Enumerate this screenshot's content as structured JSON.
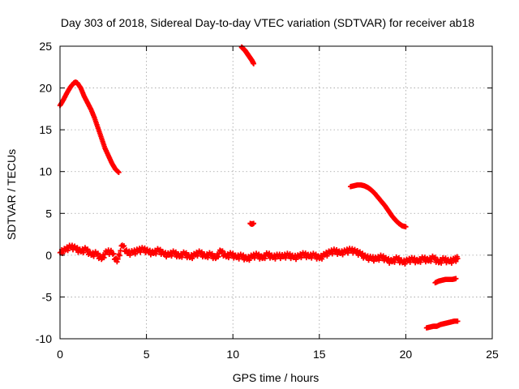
{
  "chart_data": {
    "type": "scatter",
    "title": "Day 303 of 2018, Sidereal Day-to-day VTEC variation (SDTVAR) for receiver ab18",
    "xlabel": "GPS time / hours",
    "ylabel": "SDTVAR / TECUs",
    "xlim": [
      0,
      25
    ],
    "ylim": [
      -10,
      25
    ],
    "xticks": [
      0,
      5,
      10,
      15,
      20,
      25
    ],
    "yticks": [
      -10,
      -5,
      0,
      5,
      10,
      15,
      20,
      25
    ],
    "xtick_labels": [
      "0",
      "5",
      "10",
      "15",
      "20",
      "25"
    ],
    "ytick_labels": [
      "-10",
      "-5",
      "0",
      "5",
      "10",
      "15",
      "20",
      "25"
    ],
    "grid": true,
    "marker": "plus",
    "color": "#ff0000",
    "series": [
      {
        "name": "early arc rising and falling",
        "x": [
          0.0,
          0.2,
          0.4,
          0.6,
          0.8,
          0.9,
          1.0,
          1.2,
          1.4,
          1.6,
          1.8,
          2.0,
          2.2,
          2.4,
          2.6,
          2.8,
          3.0,
          3.2,
          3.4
        ],
        "y": [
          17.9,
          18.6,
          19.4,
          20.1,
          20.6,
          20.7,
          20.6,
          20.0,
          19.0,
          18.2,
          17.4,
          16.4,
          15.2,
          14.0,
          12.8,
          11.9,
          11.0,
          10.3,
          9.9
        ]
      },
      {
        "name": "arc near 10.5 h",
        "x": [
          10.5,
          10.6,
          10.7,
          10.8,
          10.9,
          11.0,
          11.1,
          11.2
        ],
        "y": [
          24.9,
          24.7,
          24.5,
          24.2,
          23.9,
          23.6,
          23.3,
          22.9
        ]
      },
      {
        "name": "isolated points near 11 h",
        "x": [
          11.0,
          11.1,
          11.2
        ],
        "y": [
          3.8,
          3.7,
          3.8
        ]
      },
      {
        "name": "evening arc",
        "x": [
          16.8,
          17.0,
          17.2,
          17.4,
          17.6,
          17.8,
          18.0,
          18.2,
          18.4,
          18.6,
          18.8,
          19.0,
          19.2,
          19.4,
          19.6,
          19.8,
          20.0
        ],
        "y": [
          8.2,
          8.3,
          8.4,
          8.4,
          8.3,
          8.1,
          7.8,
          7.4,
          6.9,
          6.4,
          5.9,
          5.3,
          4.7,
          4.2,
          3.8,
          3.5,
          3.4
        ]
      },
      {
        "name": "near-zero band",
        "x": [
          0.0,
          0.3,
          0.6,
          0.9,
          1.2,
          1.5,
          1.8,
          2.1,
          2.4,
          2.7,
          3.0,
          3.3,
          3.6,
          3.9,
          4.2,
          4.5,
          4.8,
          5.1,
          5.4,
          5.7,
          6.0,
          6.3,
          6.6,
          6.9,
          7.2,
          7.5,
          7.8,
          8.1,
          8.4,
          8.7,
          9.0,
          9.3,
          9.6,
          9.9,
          10.2,
          10.5,
          10.8,
          11.1,
          11.4,
          11.7,
          12.0,
          12.3,
          12.6,
          12.9,
          13.2,
          13.5,
          13.8,
          14.1,
          14.4,
          14.7,
          15.0,
          15.3,
          15.6,
          15.9,
          16.2,
          16.5,
          16.8,
          17.1,
          17.4,
          17.7,
          18.0,
          18.3,
          18.6,
          18.9,
          19.2,
          19.5,
          19.8,
          20.1,
          20.4,
          20.7,
          21.0,
          21.3,
          21.6,
          21.9,
          22.2,
          22.5,
          22.8,
          23.0
        ],
        "y": [
          0.3,
          0.6,
          1.0,
          0.8,
          0.4,
          0.7,
          0.0,
          0.2,
          -0.5,
          0.4,
          0.3,
          -0.8,
          1.2,
          0.2,
          0.3,
          0.5,
          0.7,
          0.4,
          0.2,
          0.6,
          0.1,
          0.0,
          0.3,
          -0.2,
          0.2,
          -0.3,
          0.0,
          0.3,
          -0.2,
          0.1,
          -0.4,
          0.5,
          -0.2,
          0.1,
          -0.3,
          -0.1,
          -0.5,
          -0.2,
          0.0,
          -0.4,
          0.1,
          -0.3,
          -0.1,
          -0.2,
          0.0,
          -0.3,
          -0.2,
          0.1,
          -0.2,
          0.0,
          -0.4,
          0.0,
          0.3,
          0.5,
          0.2,
          0.4,
          0.6,
          0.4,
          0.1,
          -0.3,
          -0.4,
          -0.5,
          -0.2,
          -0.6,
          -0.8,
          -0.4,
          -0.9,
          -0.7,
          -0.5,
          -0.8,
          -0.4,
          -0.7,
          -0.3,
          -0.9,
          -0.5,
          -0.8,
          -0.6,
          -0.4
        ]
      },
      {
        "name": "late small arc",
        "x": [
          21.7,
          21.9,
          22.1,
          22.3,
          22.5,
          22.7,
          22.9
        ],
        "y": [
          -3.3,
          -3.1,
          -3.0,
          -2.9,
          -2.9,
          -2.9,
          -2.8
        ]
      },
      {
        "name": "late lower arc",
        "x": [
          21.2,
          21.4,
          21.6,
          21.8,
          22.0,
          22.2,
          22.4,
          22.6,
          22.8,
          23.0
        ],
        "y": [
          -8.7,
          -8.6,
          -8.5,
          -8.5,
          -8.3,
          -8.2,
          -8.1,
          -8.0,
          -7.9,
          -7.9
        ]
      }
    ]
  }
}
